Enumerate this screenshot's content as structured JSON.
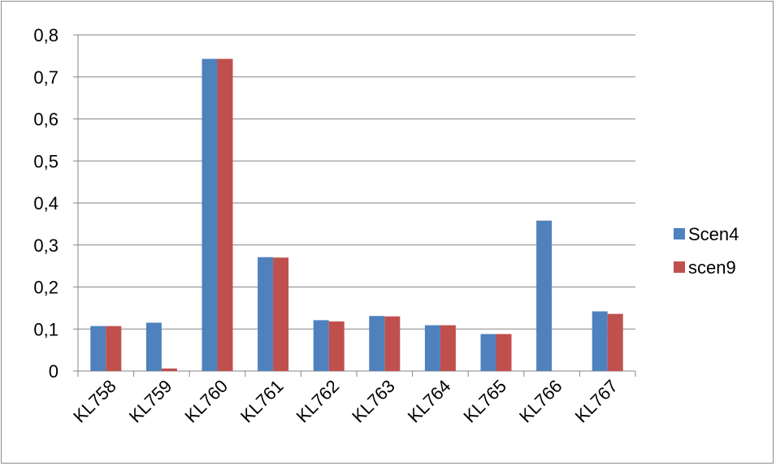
{
  "chart_data": {
    "type": "bar",
    "categories": [
      "KL758",
      "KL759",
      "KL760",
      "KL761",
      "KL762",
      "KL763",
      "KL764",
      "KL765",
      "KL766",
      "KL767"
    ],
    "series": [
      {
        "name": "Scen4",
        "color": "#4f81bd",
        "values": [
          0.107,
          0.115,
          0.743,
          0.271,
          0.121,
          0.131,
          0.109,
          0.088,
          0.358,
          0.142
        ]
      },
      {
        "name": "scen9",
        "color": "#c0504d",
        "values": [
          0.107,
          0.006,
          0.743,
          0.27,
          0.118,
          0.13,
          0.109,
          0.088,
          0.0,
          0.136
        ]
      }
    ],
    "ylim": [
      0,
      0.8
    ],
    "yticks": [
      "0",
      "0,1",
      "0,2",
      "0,3",
      "0,4",
      "0,5",
      "0,6",
      "0,7",
      "0,8"
    ],
    "grid": true,
    "legend_position": "right"
  }
}
